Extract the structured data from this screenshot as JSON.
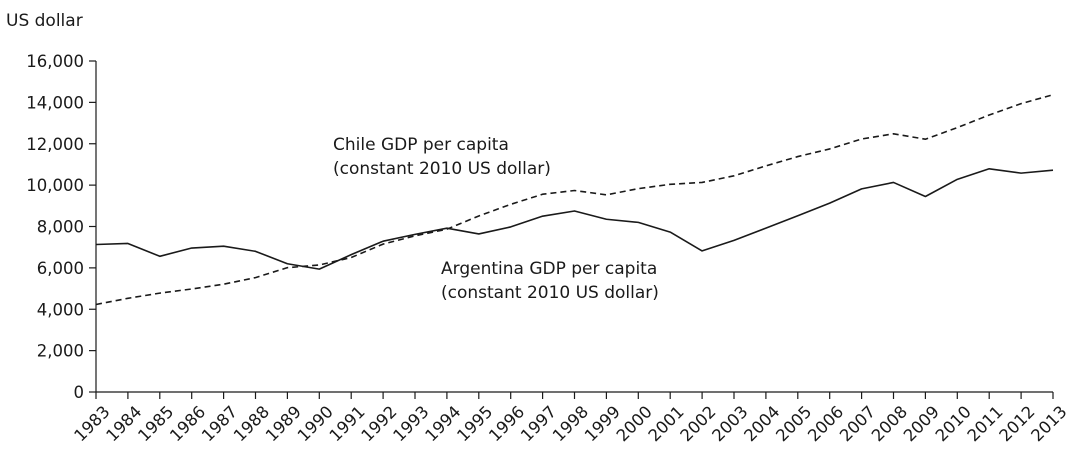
{
  "chart_data": {
    "type": "line",
    "title": "",
    "xlabel": "",
    "ylabel": "US dollar",
    "ylim": [
      0,
      16000
    ],
    "yticks": [
      0,
      2000,
      4000,
      6000,
      8000,
      10000,
      12000,
      14000,
      16000
    ],
    "ytick_labels": [
      "0",
      "2,000",
      "4,000",
      "6,000",
      "8,000",
      "10,000",
      "12,000",
      "14,000",
      "16,000"
    ],
    "x": [
      "1983",
      "1984",
      "1985",
      "1986",
      "1987",
      "1988",
      "1989",
      "1990",
      "1991",
      "1992",
      "1993",
      "1994",
      "1995",
      "1996",
      "1997",
      "1998",
      "1999",
      "2000",
      "2001",
      "2002",
      "2003",
      "2004",
      "2005",
      "2006",
      "2007",
      "2008",
      "2009",
      "2010",
      "2011",
      "2012",
      "2013"
    ],
    "grid": false,
    "legend": "none",
    "series": [
      {
        "name": "Argentina GDP per capita (constant 2010 US dollar)",
        "style": "solid",
        "color": "#1a1a1a",
        "values": [
          7130,
          7180,
          6560,
          6960,
          7050,
          6800,
          6200,
          5940,
          6640,
          7290,
          7620,
          7920,
          7640,
          7980,
          8500,
          8750,
          8350,
          8200,
          7730,
          6820,
          7330,
          7920,
          8520,
          9130,
          9820,
          10130,
          9450,
          10280,
          10790,
          10580,
          10720
        ]
      },
      {
        "name": "Chile GDP per capita (constant 2010 US dollar)",
        "style": "dashed",
        "color": "#1a1a1a",
        "values": [
          4230,
          4530,
          4780,
          4980,
          5210,
          5530,
          6010,
          6140,
          6500,
          7150,
          7550,
          7870,
          8510,
          9070,
          9560,
          9740,
          9530,
          9830,
          10040,
          10130,
          10450,
          10930,
          11380,
          11750,
          12230,
          12480,
          12220,
          12780,
          13390,
          13940,
          14370
        ]
      }
    ],
    "annotations": [
      {
        "lines": [
          "Chile GDP per capita",
          "(constant 2010 US dollar)"
        ]
      },
      {
        "lines": [
          "Argentina GDP per capita",
          "(constant 2010 US dollar)"
        ]
      }
    ]
  }
}
